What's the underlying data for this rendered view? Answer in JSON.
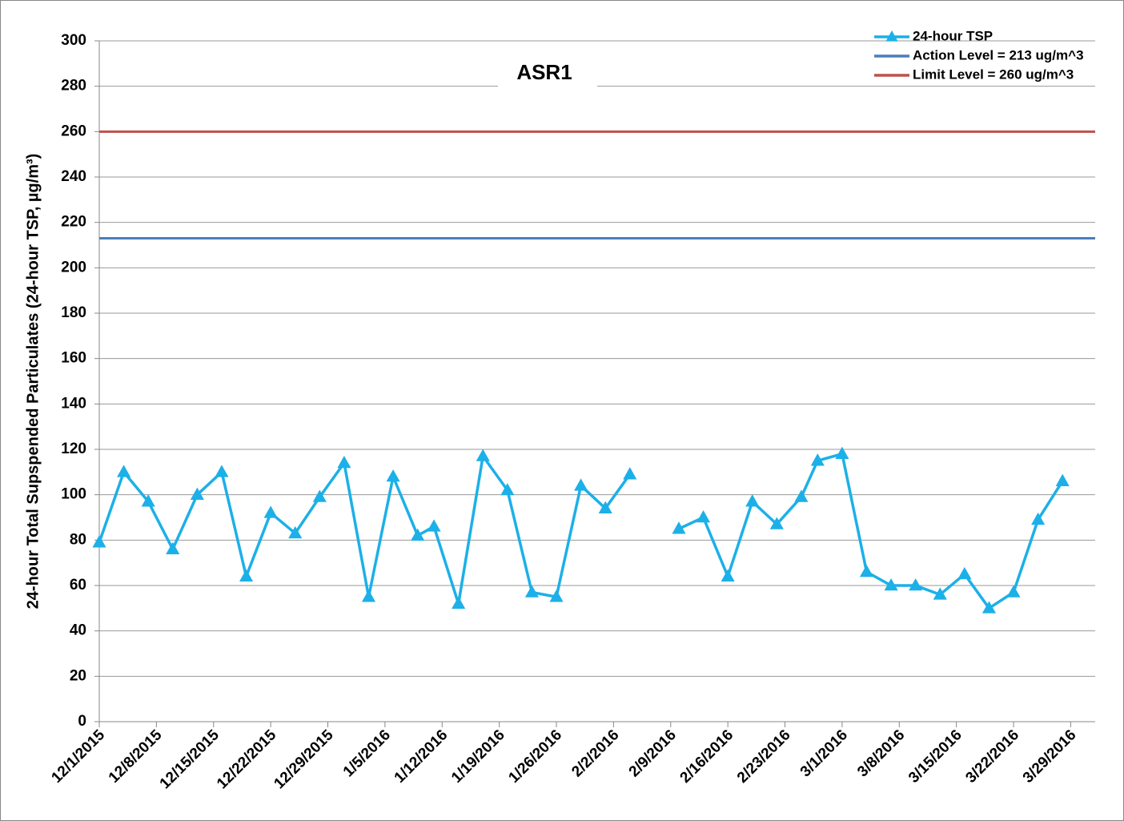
{
  "chart_data": {
    "type": "line",
    "title": "ASR1",
    "y_label": "24-hour Total Supspended Particulates (24-hour TSP, µg/m³)",
    "x": [
      "2015-12-01",
      "2015-12-04",
      "2015-12-07",
      "2015-12-10",
      "2015-12-13",
      "2015-12-16",
      "2015-12-19",
      "2015-12-22",
      "2015-12-25",
      "2015-12-28",
      "2015-12-31",
      "2016-01-03",
      "2016-01-06",
      "2016-01-09",
      "2016-01-11",
      "2016-01-14",
      "2016-01-17",
      "2016-01-20",
      "2016-01-23",
      "2016-01-26",
      "2016-01-29",
      "2016-02-01",
      "2016-02-04",
      "2016-02-07",
      "2016-02-10",
      "2016-02-13",
      "2016-02-16",
      "2016-02-19",
      "2016-02-22",
      "2016-02-25",
      "2016-02-27",
      "2016-03-01",
      "2016-03-04",
      "2016-03-07",
      "2016-03-10",
      "2016-03-13",
      "2016-03-16",
      "2016-03-19",
      "2016-03-22",
      "2016-03-25",
      "2016-03-28"
    ],
    "series": [
      {
        "name": "24-hour TSP",
        "color": "#1cb0e8",
        "values": [
          79,
          110,
          97,
          76,
          100,
          110,
          64,
          92,
          83,
          99,
          114,
          55,
          108,
          82,
          86,
          52,
          117,
          102,
          57,
          55,
          104,
          94,
          109,
          null,
          85,
          90,
          64,
          97,
          87,
          99,
          115,
          118,
          66,
          60,
          60,
          56,
          65,
          50,
          57,
          89,
          106
        ]
      }
    ],
    "hlines": [
      {
        "name": "Action Level = 213 ug/m^3",
        "value": 213,
        "color": "#4a7ebb"
      },
      {
        "name": "Limit Level = 260 ug/m^3",
        "value": 260,
        "color": "#c0504d"
      }
    ],
    "xlim": [
      "2015-12-01",
      "2016-04-01"
    ],
    "xticks": [
      {
        "value": "2015-12-01",
        "label": "12/1/2015"
      },
      {
        "value": "2015-12-08",
        "label": "12/8/2015"
      },
      {
        "value": "2015-12-15",
        "label": "12/15/2015"
      },
      {
        "value": "2015-12-22",
        "label": "12/22/2015"
      },
      {
        "value": "2015-12-29",
        "label": "12/29/2015"
      },
      {
        "value": "2016-01-05",
        "label": "1/5/2016"
      },
      {
        "value": "2016-01-12",
        "label": "1/12/2016"
      },
      {
        "value": "2016-01-19",
        "label": "1/19/2016"
      },
      {
        "value": "2016-01-26",
        "label": "1/26/2016"
      },
      {
        "value": "2016-02-02",
        "label": "2/2/2016"
      },
      {
        "value": "2016-02-09",
        "label": "2/9/2016"
      },
      {
        "value": "2016-02-16",
        "label": "2/16/2016"
      },
      {
        "value": "2016-02-23",
        "label": "2/23/2016"
      },
      {
        "value": "2016-03-01",
        "label": "3/1/2016"
      },
      {
        "value": "2016-03-08",
        "label": "3/8/2016"
      },
      {
        "value": "2016-03-15",
        "label": "3/15/2016"
      },
      {
        "value": "2016-03-22",
        "label": "3/22/2016"
      },
      {
        "value": "2016-03-29",
        "label": "3/29/2016"
      }
    ],
    "ylim": [
      0,
      300
    ],
    "yticks": [
      0,
      20,
      40,
      60,
      80,
      100,
      120,
      140,
      160,
      180,
      200,
      220,
      240,
      260,
      280,
      300
    ],
    "grid": true,
    "legend": "top-right"
  }
}
